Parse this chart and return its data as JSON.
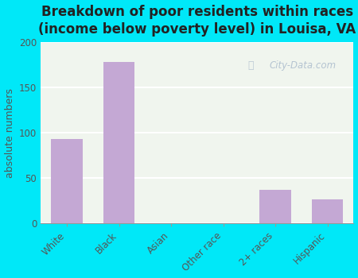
{
  "title": "Breakdown of poor residents within races\n(income below poverty level) in Louisa, VA",
  "categories": [
    "White",
    "Black",
    "Asian",
    "Other race",
    "2+ races",
    "Hispanic"
  ],
  "values": [
    93,
    178,
    0,
    0,
    37,
    27
  ],
  "bar_color": "#c4a8d4",
  "ylabel": "absolute numbers",
  "ylim": [
    0,
    200
  ],
  "yticks": [
    0,
    50,
    100,
    150,
    200
  ],
  "background_outer": "#00e8f8",
  "background_inner": "#f0f5ee",
  "title_fontsize": 12,
  "ylabel_fontsize": 9,
  "tick_fontsize": 8.5,
  "watermark": "City-Data.com",
  "watermark_color": "#aabbcc",
  "title_color": "#222222",
  "tick_color": "#555555",
  "ylabel_color": "#555555"
}
